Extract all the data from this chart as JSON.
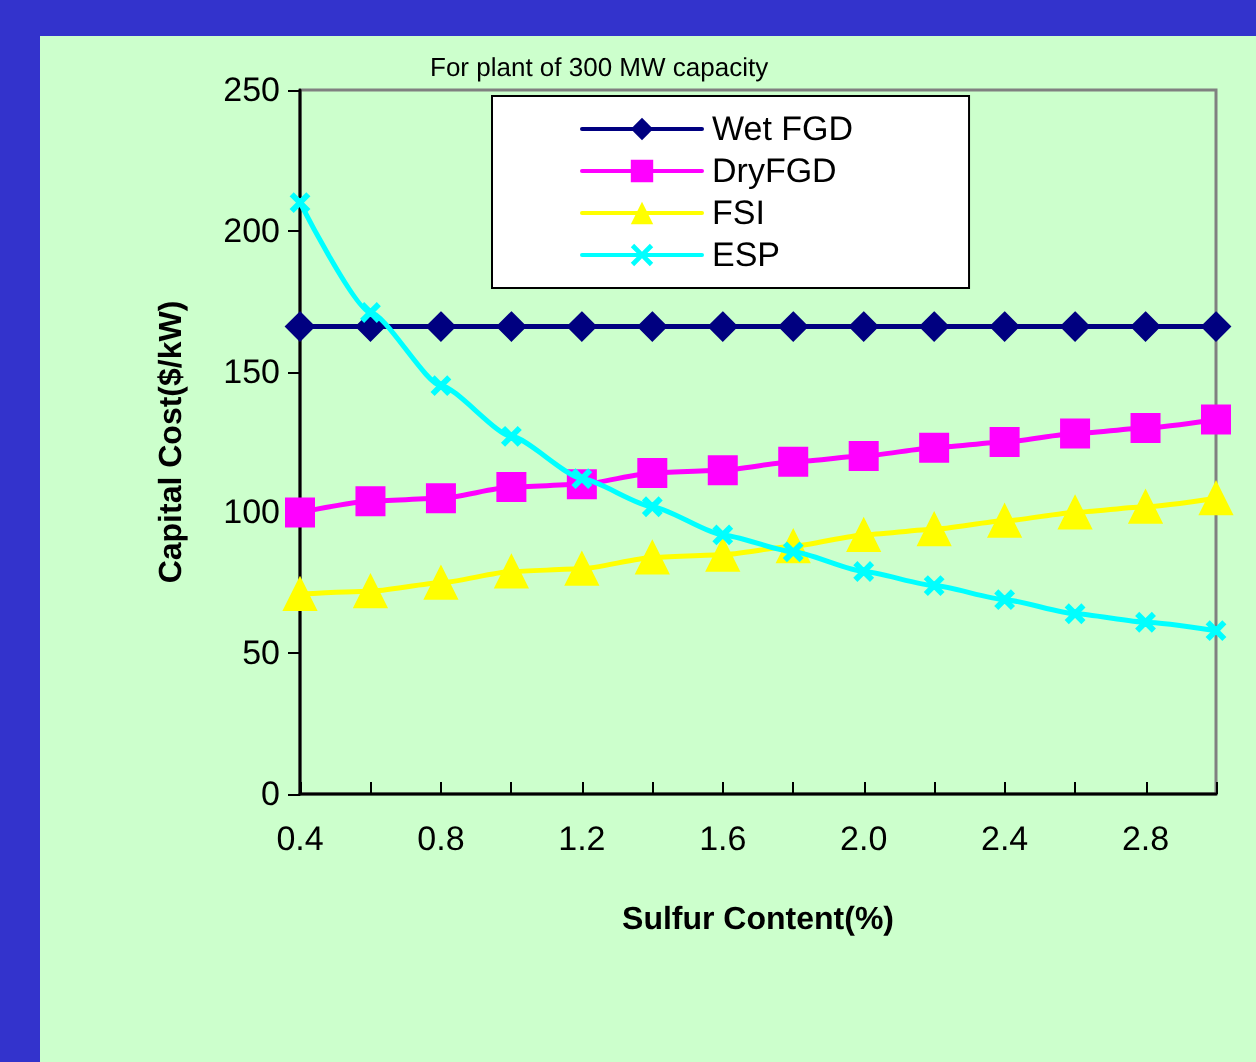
{
  "chart_data": {
    "type": "line",
    "title": "For plant of 300 MW capacity",
    "xlabel": "Sulfur Content(%)",
    "ylabel": "Capital Cost($/kW)",
    "categories": [
      "0.4",
      null,
      "0.8",
      null,
      "1.2",
      null,
      "1.6",
      null,
      "2.0",
      null,
      "2.4",
      null,
      "2.8",
      null
    ],
    "series": [
      {
        "name": "Wet FGD",
        "color": "#000080",
        "marker": "diamond",
        "values": [
          166,
          166,
          166,
          166,
          166,
          166,
          166,
          166,
          166,
          166,
          166,
          166,
          166,
          166
        ]
      },
      {
        "name": "DryFGD",
        "color": "#ff00ff",
        "marker": "square",
        "values": [
          100,
          104,
          105,
          109,
          110,
          114,
          115,
          118,
          120,
          123,
          125,
          128,
          130,
          133
        ]
      },
      {
        "name": "FSI",
        "color": "#ffff00",
        "marker": "triangle",
        "values": [
          71,
          72,
          75,
          79,
          80,
          84,
          85,
          88,
          92,
          94,
          97,
          100,
          102,
          105
        ]
      },
      {
        "name": "ESP",
        "color": "#00ffff",
        "marker": "cross",
        "values": [
          210,
          171,
          145,
          127,
          112,
          102,
          92,
          86,
          79,
          74,
          69,
          64,
          61,
          58
        ]
      }
    ],
    "ylim": [
      0,
      250
    ],
    "yticks": [
      0,
      50,
      100,
      150,
      200,
      250
    ],
    "legend": "top",
    "line_style": "solid"
  }
}
